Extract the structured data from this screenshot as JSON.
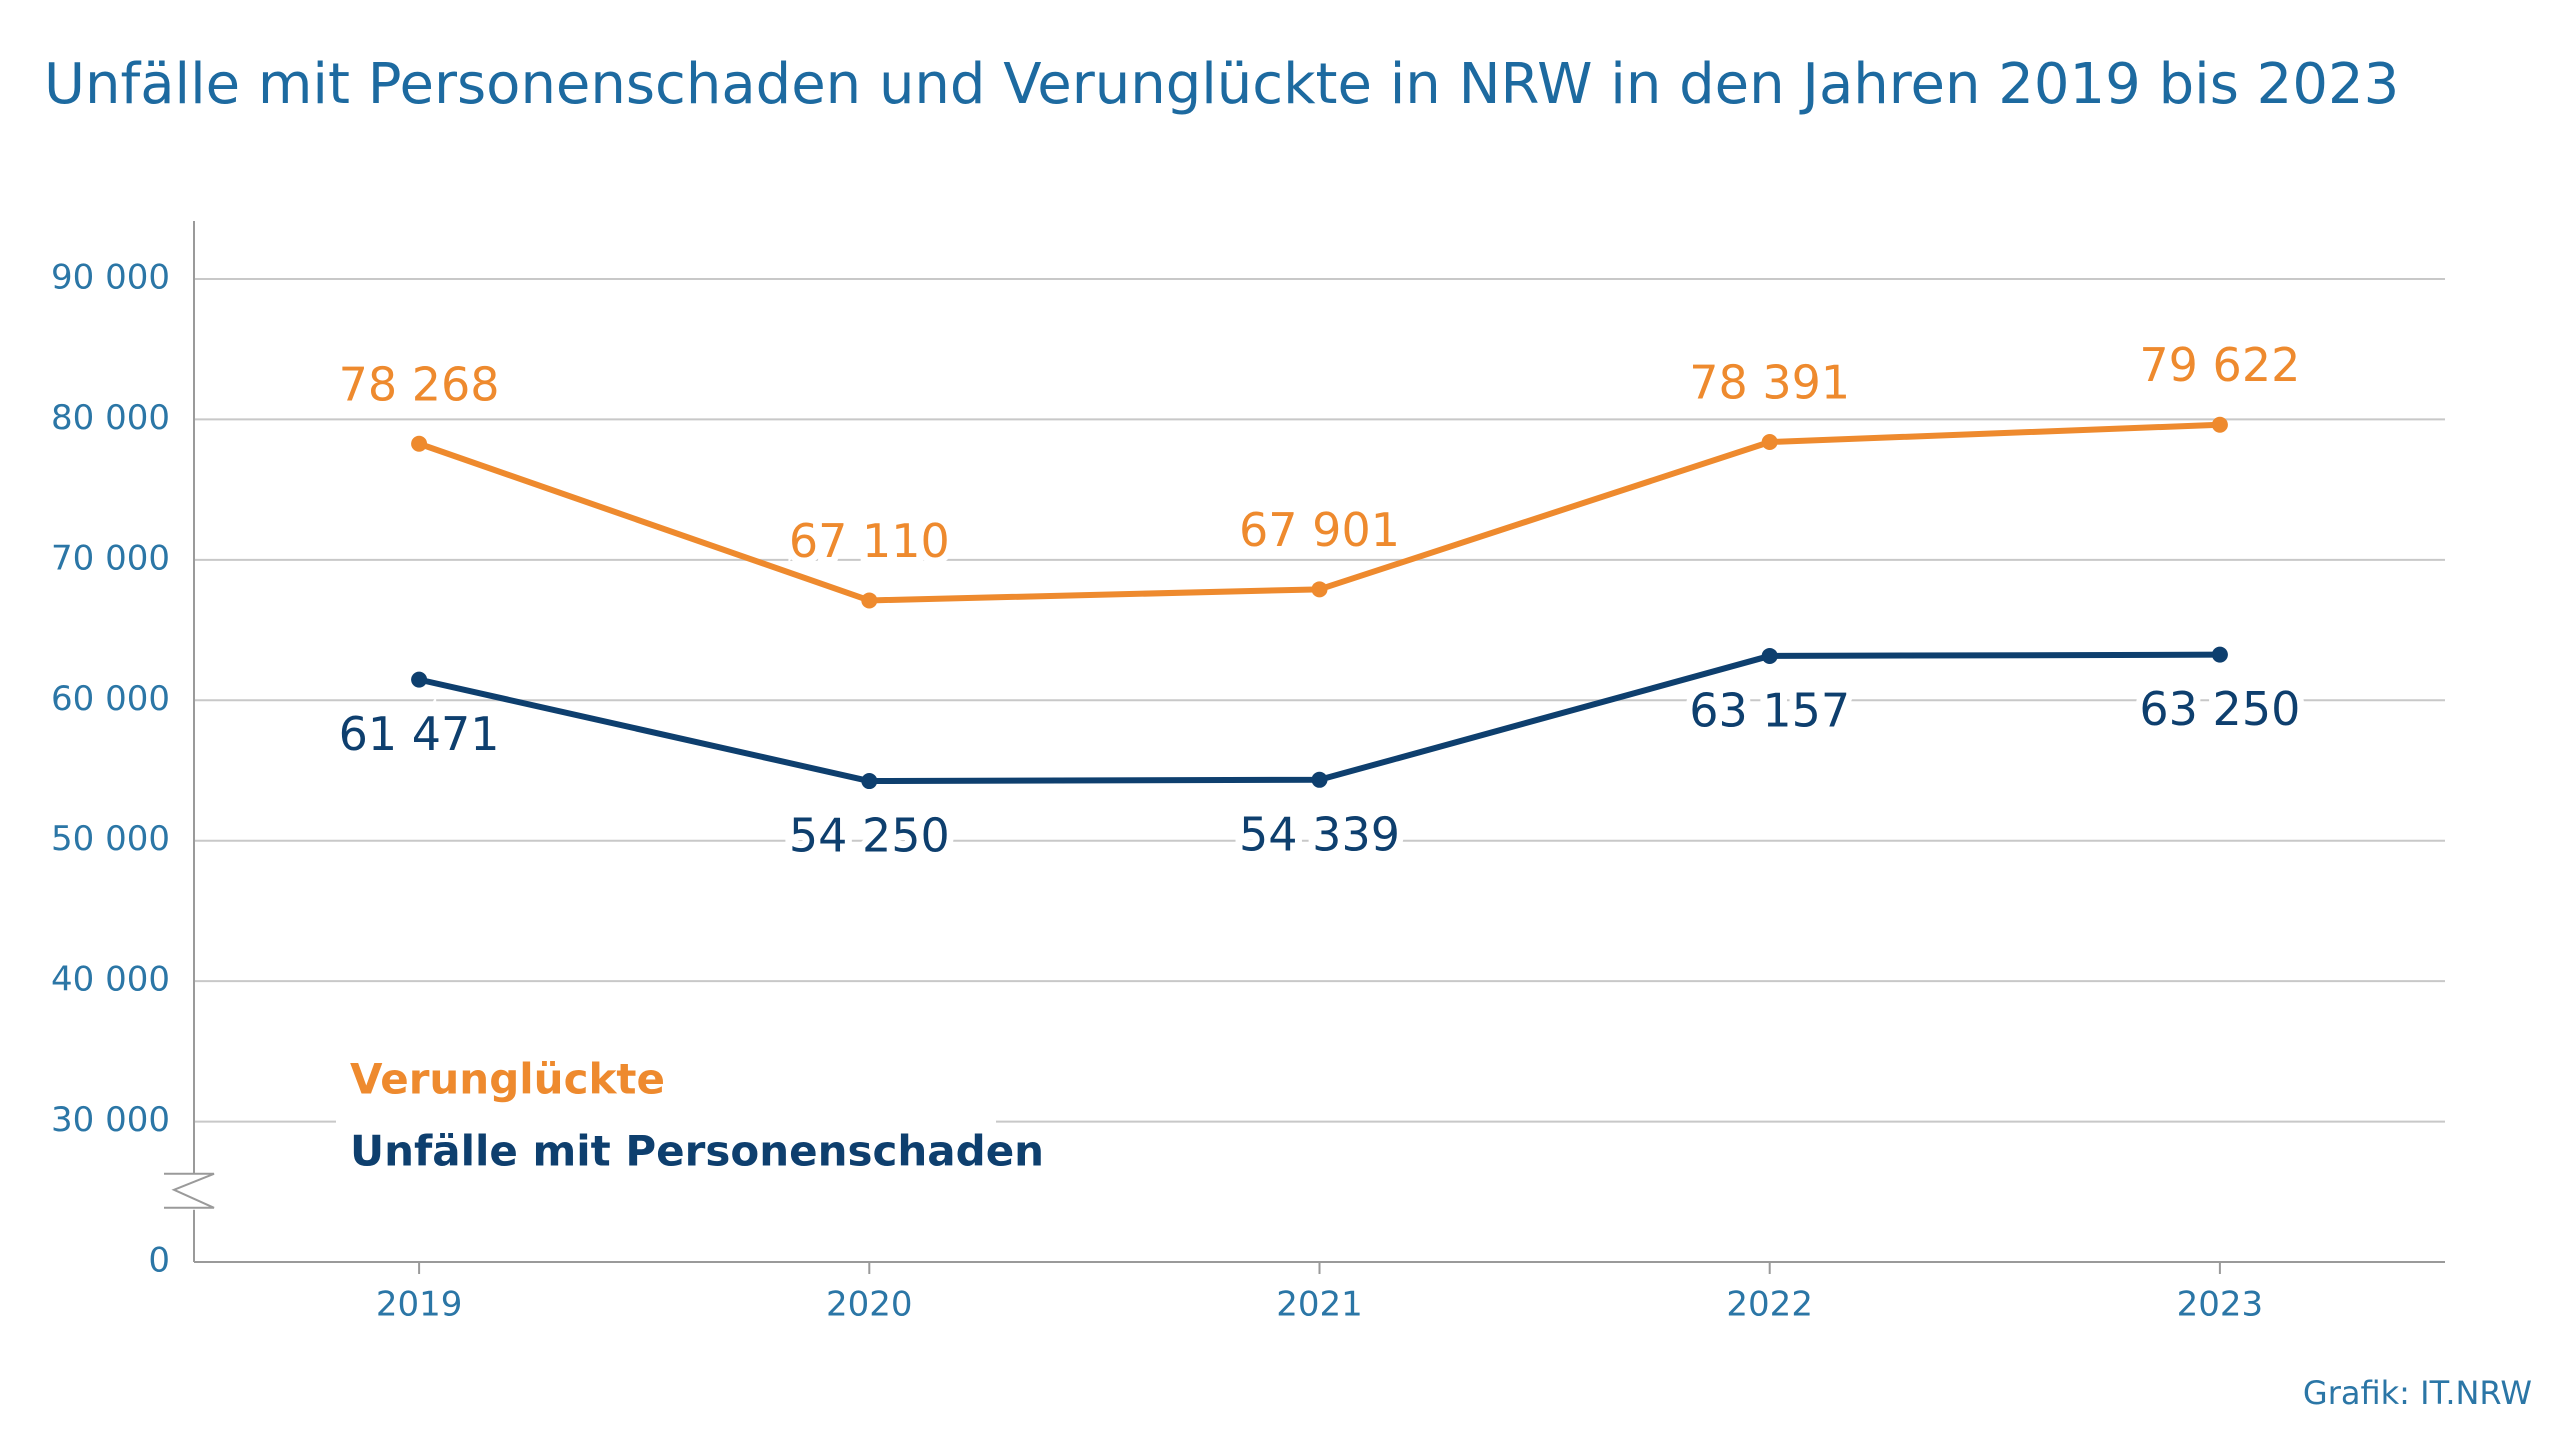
{
  "chart_data": {
    "type": "line",
    "title": "Unfälle mit Personenschaden und Verunglückte in NRW in den Jahren 2019 bis 2023",
    "categories": [
      "2019",
      "2020",
      "2021",
      "2022",
      "2023"
    ],
    "series": [
      {
        "name": "Verunglückte",
        "color": "#ee8a2e",
        "values": [
          78268,
          67110,
          67901,
          78391,
          79622
        ],
        "value_labels": [
          "78 268",
          "67 110",
          "67 901",
          "78 391",
          "79 622"
        ]
      },
      {
        "name": "Unfälle mit Personenschaden",
        "color": "#0e3f6e",
        "values": [
          61471,
          54250,
          54339,
          63157,
          63250
        ],
        "value_labels": [
          "61 471",
          "54 250",
          "54 339",
          "63 157",
          "63 250"
        ]
      }
    ],
    "ylim": [
      0,
      90000
    ],
    "yticks": [
      0,
      {
        "value": 30000,
        "label": "30 000"
      },
      {
        "value": 40000,
        "label": "40 000"
      },
      {
        "value": 50000,
        "label": "50 000"
      },
      {
        "value": 60000,
        "label": "60 000"
      },
      {
        "value": 70000,
        "label": "70 000"
      },
      {
        "value": 80000,
        "label": "80 000"
      },
      {
        "value": 90000,
        "label": "90 000"
      }
    ],
    "y_axis_break": true,
    "grid": true,
    "source": "Grafik: IT.NRW"
  }
}
